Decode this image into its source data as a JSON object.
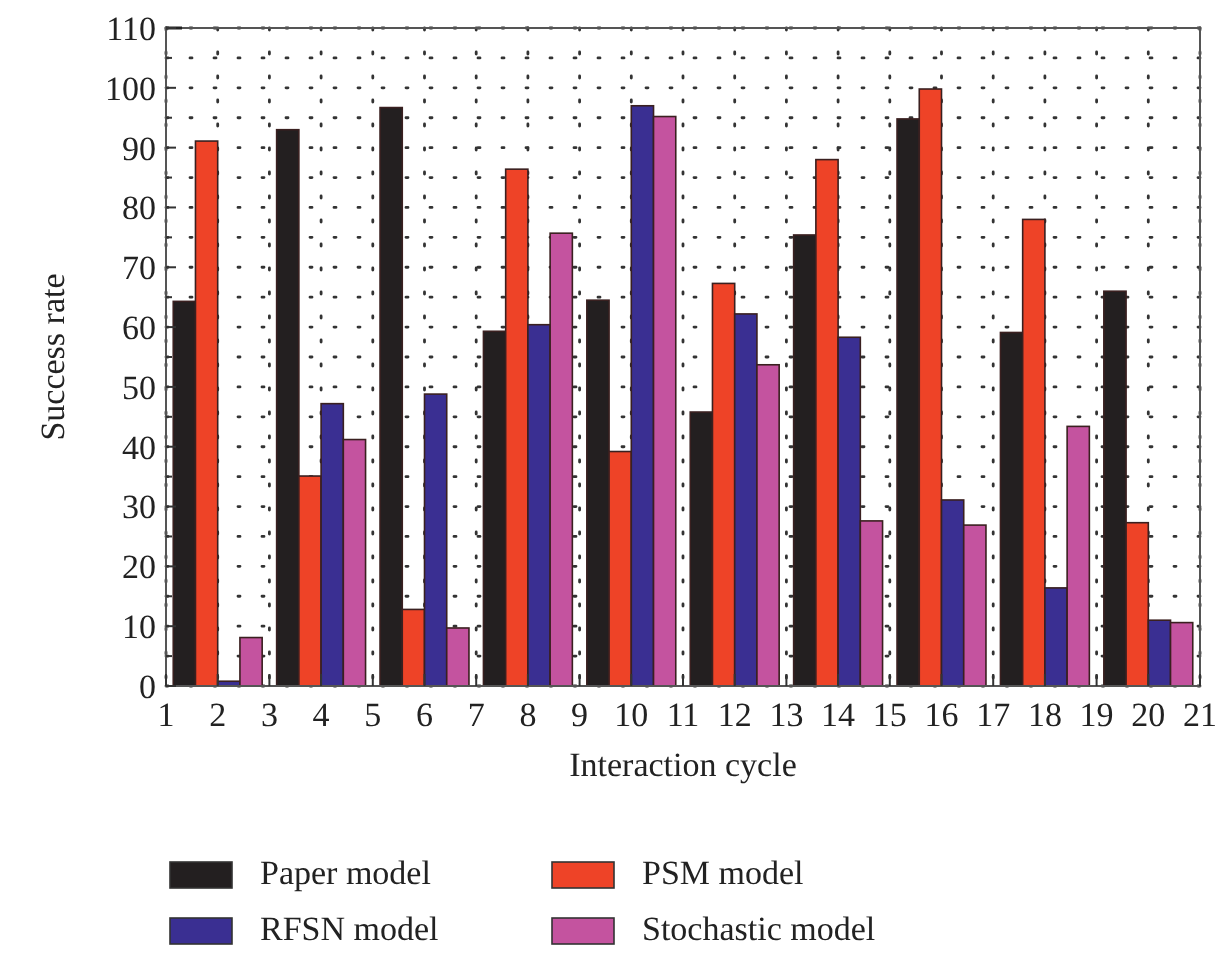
{
  "chart_data": {
    "type": "bar",
    "xlabel": "Interaction cycle",
    "ylabel": "Success rate",
    "x": [
      2,
      4,
      6,
      8,
      10,
      12,
      14,
      16,
      18,
      20
    ],
    "xlim": [
      1,
      21
    ],
    "xticks": [
      1,
      2,
      3,
      4,
      5,
      6,
      7,
      8,
      9,
      10,
      11,
      12,
      13,
      14,
      15,
      16,
      17,
      18,
      19,
      20,
      21
    ],
    "ylim": [
      0,
      110
    ],
    "yticks": [
      0,
      {
        "value": 5,
        "label": null
      },
      10,
      {
        "value": 15,
        "label": null
      },
      20,
      {
        "value": 25,
        "label": null
      },
      30,
      {
        "value": 35,
        "label": null
      },
      40,
      {
        "value": 45,
        "label": null
      },
      50,
      {
        "value": 55,
        "label": null
      },
      60,
      {
        "value": 65,
        "label": null
      },
      70,
      {
        "value": 75,
        "label": null
      },
      80,
      {
        "value": 85,
        "label": null
      },
      90,
      {
        "value": 95,
        "label": null
      },
      100,
      {
        "value": 105,
        "label": null
      },
      110
    ],
    "grid": true,
    "line_style": "dotted",
    "legend": "bottom",
    "series": [
      {
        "name": "Paper model",
        "color": "#231f20",
        "values": [
          64.3,
          93,
          96.7,
          59.3,
          64.5,
          45.8,
          75.4,
          94.8,
          59.1,
          66
        ]
      },
      {
        "name": "PSM model",
        "color": "#ee4327",
        "values": [
          91.1,
          35.1,
          12.8,
          86.4,
          39.2,
          67.3,
          88,
          99.8,
          78,
          27.3
        ]
      },
      {
        "name": "RFSN model",
        "color": "#3a2f92",
        "values": [
          0.8,
          47.2,
          48.8,
          60.4,
          97,
          62.2,
          58.3,
          31.1,
          16.4,
          11
        ]
      },
      {
        "name": "Stochastic model",
        "color": "#c4539f",
        "values": [
          8.1,
          41.2,
          9.7,
          75.7,
          95.2,
          53.7,
          27.6,
          26.9,
          43.4,
          10.6
        ]
      }
    ]
  }
}
